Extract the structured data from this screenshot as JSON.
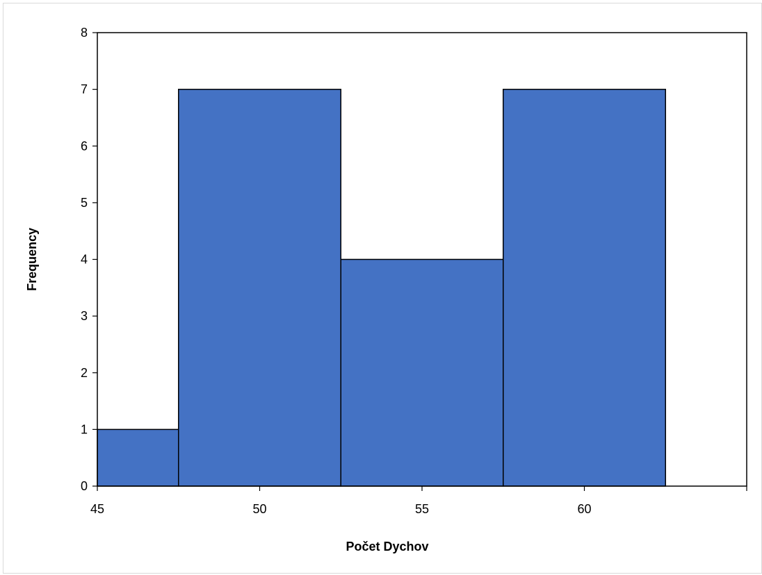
{
  "chart_data": {
    "type": "bar",
    "title": "",
    "xlabel": "Počet Dychov",
    "ylabel": "Frequency",
    "xlim": [
      45,
      65
    ],
    "ylim": [
      0,
      8
    ],
    "x_ticks": [
      45,
      50,
      55,
      60
    ],
    "y_ticks": [
      0,
      1,
      2,
      3,
      4,
      5,
      6,
      7,
      8
    ],
    "bins": [
      {
        "start": 45,
        "end": 47.5,
        "value": 1
      },
      {
        "start": 47.5,
        "end": 52.5,
        "value": 7
      },
      {
        "start": 52.5,
        "end": 57.5,
        "value": 4
      },
      {
        "start": 57.5,
        "end": 62.5,
        "value": 7
      }
    ],
    "grid": false,
    "legend": "none",
    "bar_color": "#4472C4",
    "edge_color": "#000000"
  }
}
